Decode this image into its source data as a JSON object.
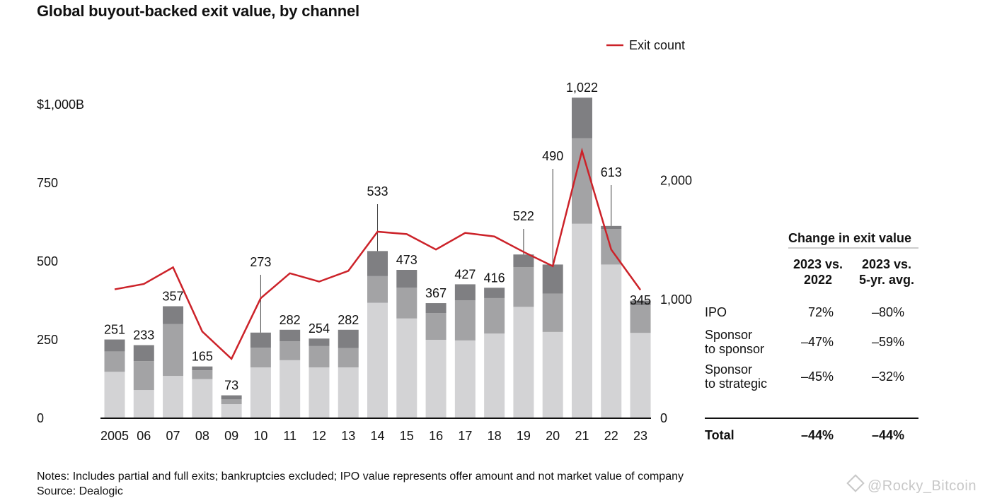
{
  "title": "Global buyout-backed exit value, by channel",
  "notes": "Notes: Includes partial and full exits; bankruptcies excluded; IPO value represents offer amount and not market value of company",
  "source": "Source: Dealogic",
  "watermark": "@Rocky_Bitcoin",
  "colors": {
    "segment_bottom": "#d3d3d5",
    "segment_middle": "#a3a3a5",
    "segment_top": "#7f7f82",
    "line": "#cc2229",
    "text": "#111111"
  },
  "chart_data": {
    "type": "bar",
    "title": "Global buyout-backed exit value, by channel",
    "categories": [
      "2005",
      "06",
      "07",
      "08",
      "09",
      "10",
      "11",
      "12",
      "13",
      "14",
      "15",
      "16",
      "17",
      "18",
      "19",
      "20",
      "21",
      "22",
      "23"
    ],
    "totals": [
      251,
      233,
      357,
      165,
      73,
      273,
      282,
      254,
      282,
      533,
      473,
      367,
      427,
      416,
      522,
      490,
      1022,
      613,
      345
    ],
    "total_labels": [
      "251",
      "233",
      "357",
      "165",
      "73",
      "273",
      "282",
      "254",
      "282",
      "533",
      "473",
      "367",
      "427",
      "416",
      "522",
      "490",
      "1,022",
      "613",
      "345"
    ],
    "series": [
      {
        "values": [
          148,
          90,
          135,
          125,
          45,
          162,
          185,
          162,
          162,
          368,
          318,
          250,
          248,
          270,
          355,
          275,
          620,
          490,
          272
        ]
      },
      {
        "values": [
          65,
          92,
          165,
          28,
          15,
          63,
          60,
          68,
          62,
          85,
          98,
          85,
          128,
          113,
          127,
          122,
          273,
          113,
          88
        ]
      },
      {
        "values": [
          38,
          51,
          57,
          12,
          13,
          48,
          37,
          24,
          58,
          80,
          57,
          32,
          51,
          33,
          40,
          93,
          129,
          10,
          15
        ]
      },
      {
        "name": "Exit count",
        "type": "line",
        "axis": "right",
        "values": [
          1085,
          1130,
          1270,
          730,
          500,
          1010,
          1220,
          1150,
          1240,
          1570,
          1550,
          1420,
          1560,
          1530,
          1400,
          1280,
          2250,
          1420,
          1080
        ]
      }
    ],
    "y_left": {
      "ticks": [
        "0",
        "250",
        "500",
        "750",
        "$1,000B"
      ],
      "ylim": [
        0,
        1000
      ]
    },
    "y_right": {
      "ticks": [
        "0",
        "1,000",
        "2,000"
      ],
      "ylim": [
        0,
        2450
      ]
    },
    "legend": {
      "position": "top-right",
      "label": "Exit count"
    }
  },
  "table": {
    "title": "Change in exit value",
    "col1": [
      "2023 vs.",
      "2022"
    ],
    "col2": [
      "2023 vs.",
      "5-yr. avg."
    ],
    "rows": [
      {
        "label": [
          "IPO"
        ],
        "v1": "72%",
        "v2": "–80%"
      },
      {
        "label": [
          "Sponsor",
          "to sponsor"
        ],
        "v1": "–47%",
        "v2": "–59%"
      },
      {
        "label": [
          "Sponsor",
          "to strategic"
        ],
        "v1": "–45%",
        "v2": "–32%"
      }
    ],
    "total": {
      "label": "Total",
      "v1": "–44%",
      "v2": "–44%"
    }
  }
}
